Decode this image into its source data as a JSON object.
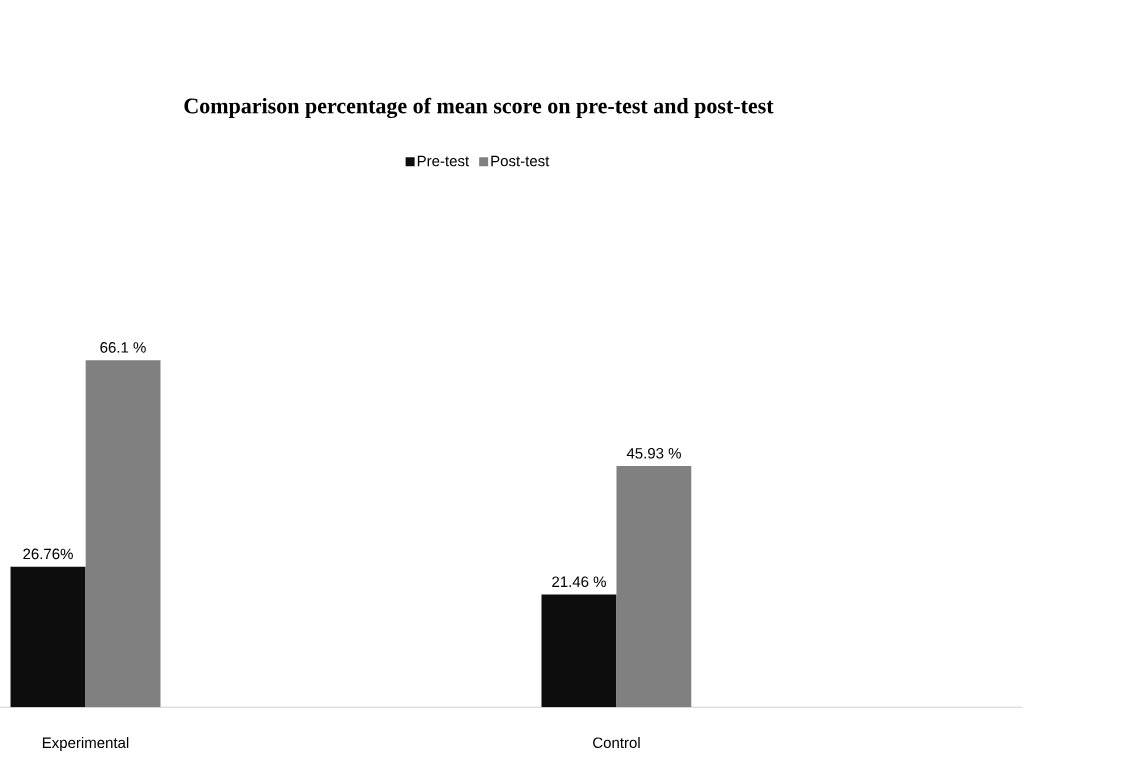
{
  "chart_data": {
    "type": "bar",
    "title": "Comparison percentage of mean score on pre-test and post-test",
    "categories": [
      "Experimental",
      "Control"
    ],
    "series": [
      {
        "name": "Pre-test",
        "color": "#0d0d0d",
        "values": [
          26.76,
          21.46
        ],
        "value_labels": [
          "26.76%",
          "21.46 %"
        ]
      },
      {
        "name": "Post-test",
        "color": "#808080",
        "values": [
          66.1,
          45.93
        ],
        "value_labels": [
          "66.1 %",
          "45.93 %"
        ]
      }
    ],
    "legend": "top",
    "tick_labels": "x"
  }
}
